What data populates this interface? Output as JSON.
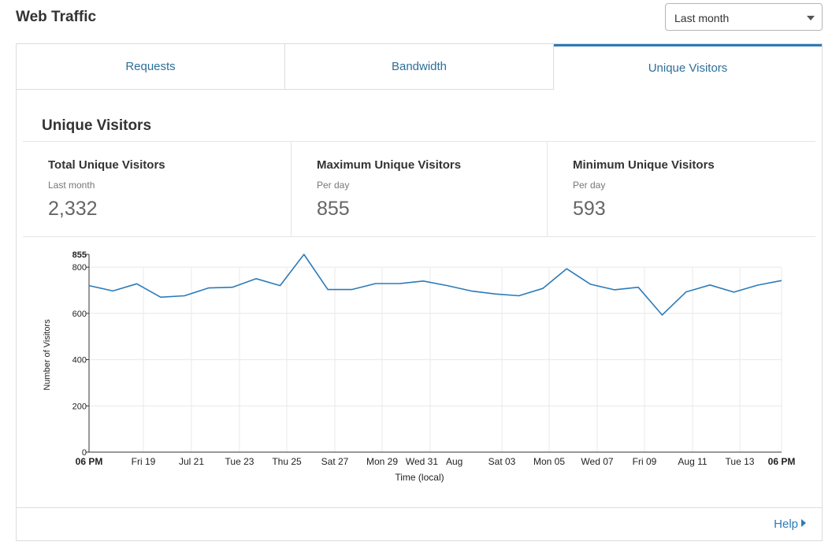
{
  "header": {
    "title": "Web Traffic",
    "range_select": {
      "selected": "Last month"
    }
  },
  "tabs": [
    {
      "label": "Requests",
      "active": false
    },
    {
      "label": "Bandwidth",
      "active": false
    },
    {
      "label": "Unique Visitors",
      "active": true
    }
  ],
  "section": {
    "title": "Unique Visitors"
  },
  "stats": [
    {
      "label": "Total Unique Visitors",
      "sub": "Last month",
      "value": "2,332"
    },
    {
      "label": "Maximum Unique Visitors",
      "sub": "Per day",
      "value": "855"
    },
    {
      "label": "Minimum Unique Visitors",
      "sub": "Per day",
      "value": "593"
    }
  ],
  "footer": {
    "help_label": "Help"
  },
  "colors": {
    "accent": "#2f7ab6",
    "line": "#2b7bb9",
    "link": "#2d7bb6"
  },
  "chart_data": {
    "type": "line",
    "xlabel": "Time (local)",
    "ylabel": "Number of Visitors",
    "ylim": [
      0,
      855
    ],
    "yticks": [
      "0",
      "200",
      "400",
      "600",
      "800",
      "855"
    ],
    "grid": true,
    "x_ticks": [
      "06 PM",
      "Fri 19",
      "Jul 21",
      "Tue 23",
      "Thu 25",
      "Sat 27",
      "Mon 29",
      "Wed 31",
      "Aug",
      "Sat 03",
      "Mon 05",
      "Wed 07",
      "Fri 09",
      "Aug 11",
      "Tue 13",
      "06 PM"
    ],
    "x_ticks_bold": [
      "06 PM"
    ],
    "series": [
      {
        "values": [
          720,
          697,
          728,
          670,
          676,
          710,
          713,
          750,
          720,
          855,
          703,
          703,
          729,
          729,
          740,
          720,
          697,
          684,
          676,
          708,
          793,
          726,
          702,
          713,
          593,
          693,
          723,
          692,
          722,
          742
        ]
      }
    ]
  }
}
